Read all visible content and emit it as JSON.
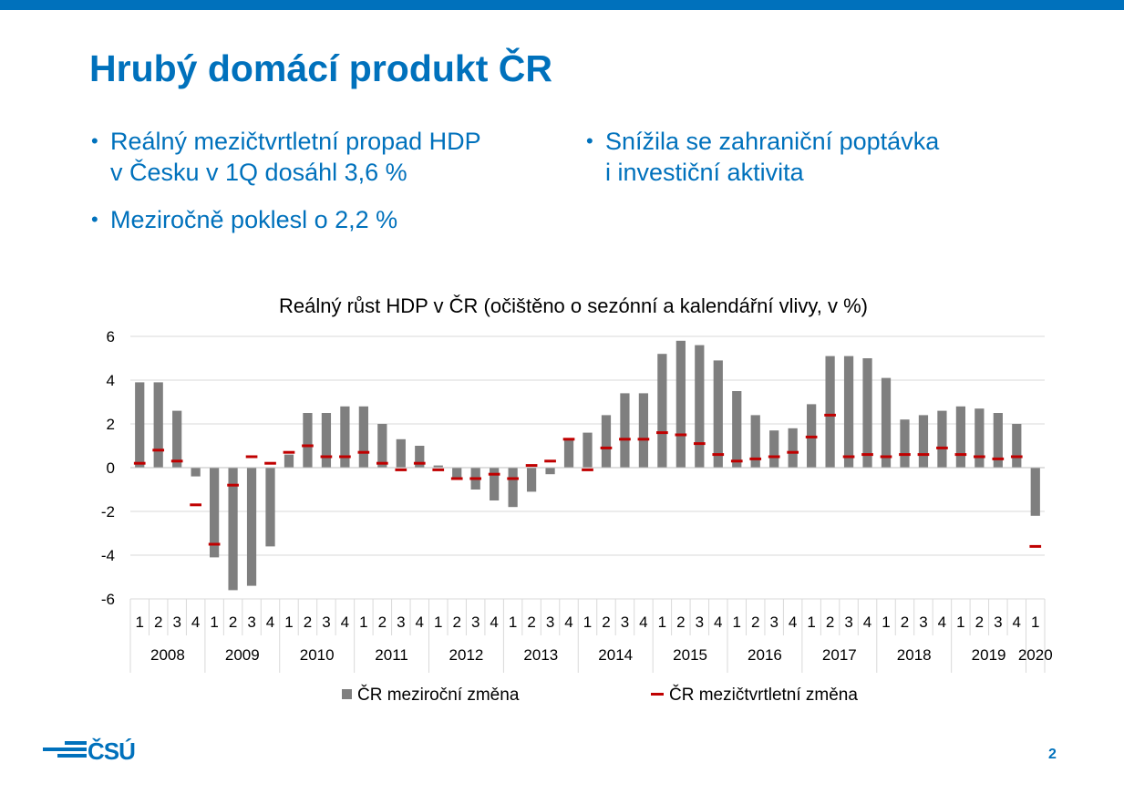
{
  "slide": {
    "title": "Hrubý domácí produkt ČR",
    "bullets": [
      {
        "line1": "Reálný mezičtvrtletní propad HDP",
        "line2": "v Česku v 1Q dosáhl 3,6 %"
      },
      {
        "line1": "Meziročně poklesl o 2,2 %"
      },
      {
        "line1": "Snížila se zahraniční poptávka",
        "line2": "i investiční aktivita"
      }
    ],
    "bullet_char": "•",
    "logo_text": "ČSÚ",
    "page_number": "2"
  },
  "colors": {
    "brand": "#0071bc",
    "bars": "#7f7f7f",
    "qoq": "#c00000",
    "grid": "#d9d9d9"
  },
  "chart_data": {
    "type": "bar",
    "title": "Reálný růst HDP v ČR (očištěno o sezónní a kalendářní vlivy, v %)",
    "ylim": [
      -6,
      6
    ],
    "yticks": [
      -6,
      -4,
      -2,
      0,
      2,
      4,
      6
    ],
    "grid": true,
    "legend_position": "bottom",
    "years": [
      "2008",
      "2009",
      "2010",
      "2011",
      "2012",
      "2013",
      "2014",
      "2015",
      "2016",
      "2017",
      "2018",
      "2019",
      "2020"
    ],
    "categories": [
      "1",
      "2",
      "3",
      "4",
      "1",
      "2",
      "3",
      "4",
      "1",
      "2",
      "3",
      "4",
      "1",
      "2",
      "3",
      "4",
      "1",
      "2",
      "3",
      "4",
      "1",
      "2",
      "3",
      "4",
      "1",
      "2",
      "3",
      "4",
      "1",
      "2",
      "3",
      "4",
      "1",
      "2",
      "3",
      "4",
      "1",
      "2",
      "3",
      "4",
      "1",
      "2",
      "3",
      "4",
      "1",
      "2",
      "3",
      "4",
      "1"
    ],
    "series": [
      {
        "name": "ČR meziroční změna",
        "kind": "bar",
        "values": [
          3.9,
          3.9,
          2.6,
          -0.4,
          -4.1,
          -5.6,
          -5.4,
          -3.6,
          0.6,
          2.5,
          2.5,
          2.8,
          2.8,
          2.0,
          1.3,
          1.0,
          0.1,
          -0.5,
          -1.0,
          -1.5,
          -1.8,
          -1.1,
          -0.3,
          1.3,
          1.6,
          2.4,
          3.4,
          3.4,
          5.2,
          5.8,
          5.6,
          4.9,
          3.5,
          2.4,
          1.7,
          1.8,
          2.9,
          5.1,
          5.1,
          5.0,
          4.1,
          2.2,
          2.4,
          2.6,
          2.8,
          2.7,
          2.5,
          2.0,
          -2.2
        ]
      },
      {
        "name": "ČR mezičtvrtletní změna",
        "kind": "dash",
        "values": [
          0.2,
          0.8,
          0.3,
          -1.7,
          -3.5,
          -0.8,
          0.5,
          0.2,
          0.7,
          1.0,
          0.5,
          0.5,
          0.7,
          0.2,
          -0.1,
          0.2,
          -0.1,
          -0.5,
          -0.5,
          -0.3,
          -0.5,
          0.1,
          0.3,
          1.3,
          -0.1,
          0.9,
          1.3,
          1.3,
          1.6,
          1.5,
          1.1,
          0.6,
          0.3,
          0.4,
          0.5,
          0.7,
          1.4,
          2.4,
          0.5,
          0.6,
          0.5,
          0.6,
          0.6,
          0.9,
          0.6,
          0.5,
          0.4,
          0.5,
          -3.6
        ]
      }
    ]
  }
}
